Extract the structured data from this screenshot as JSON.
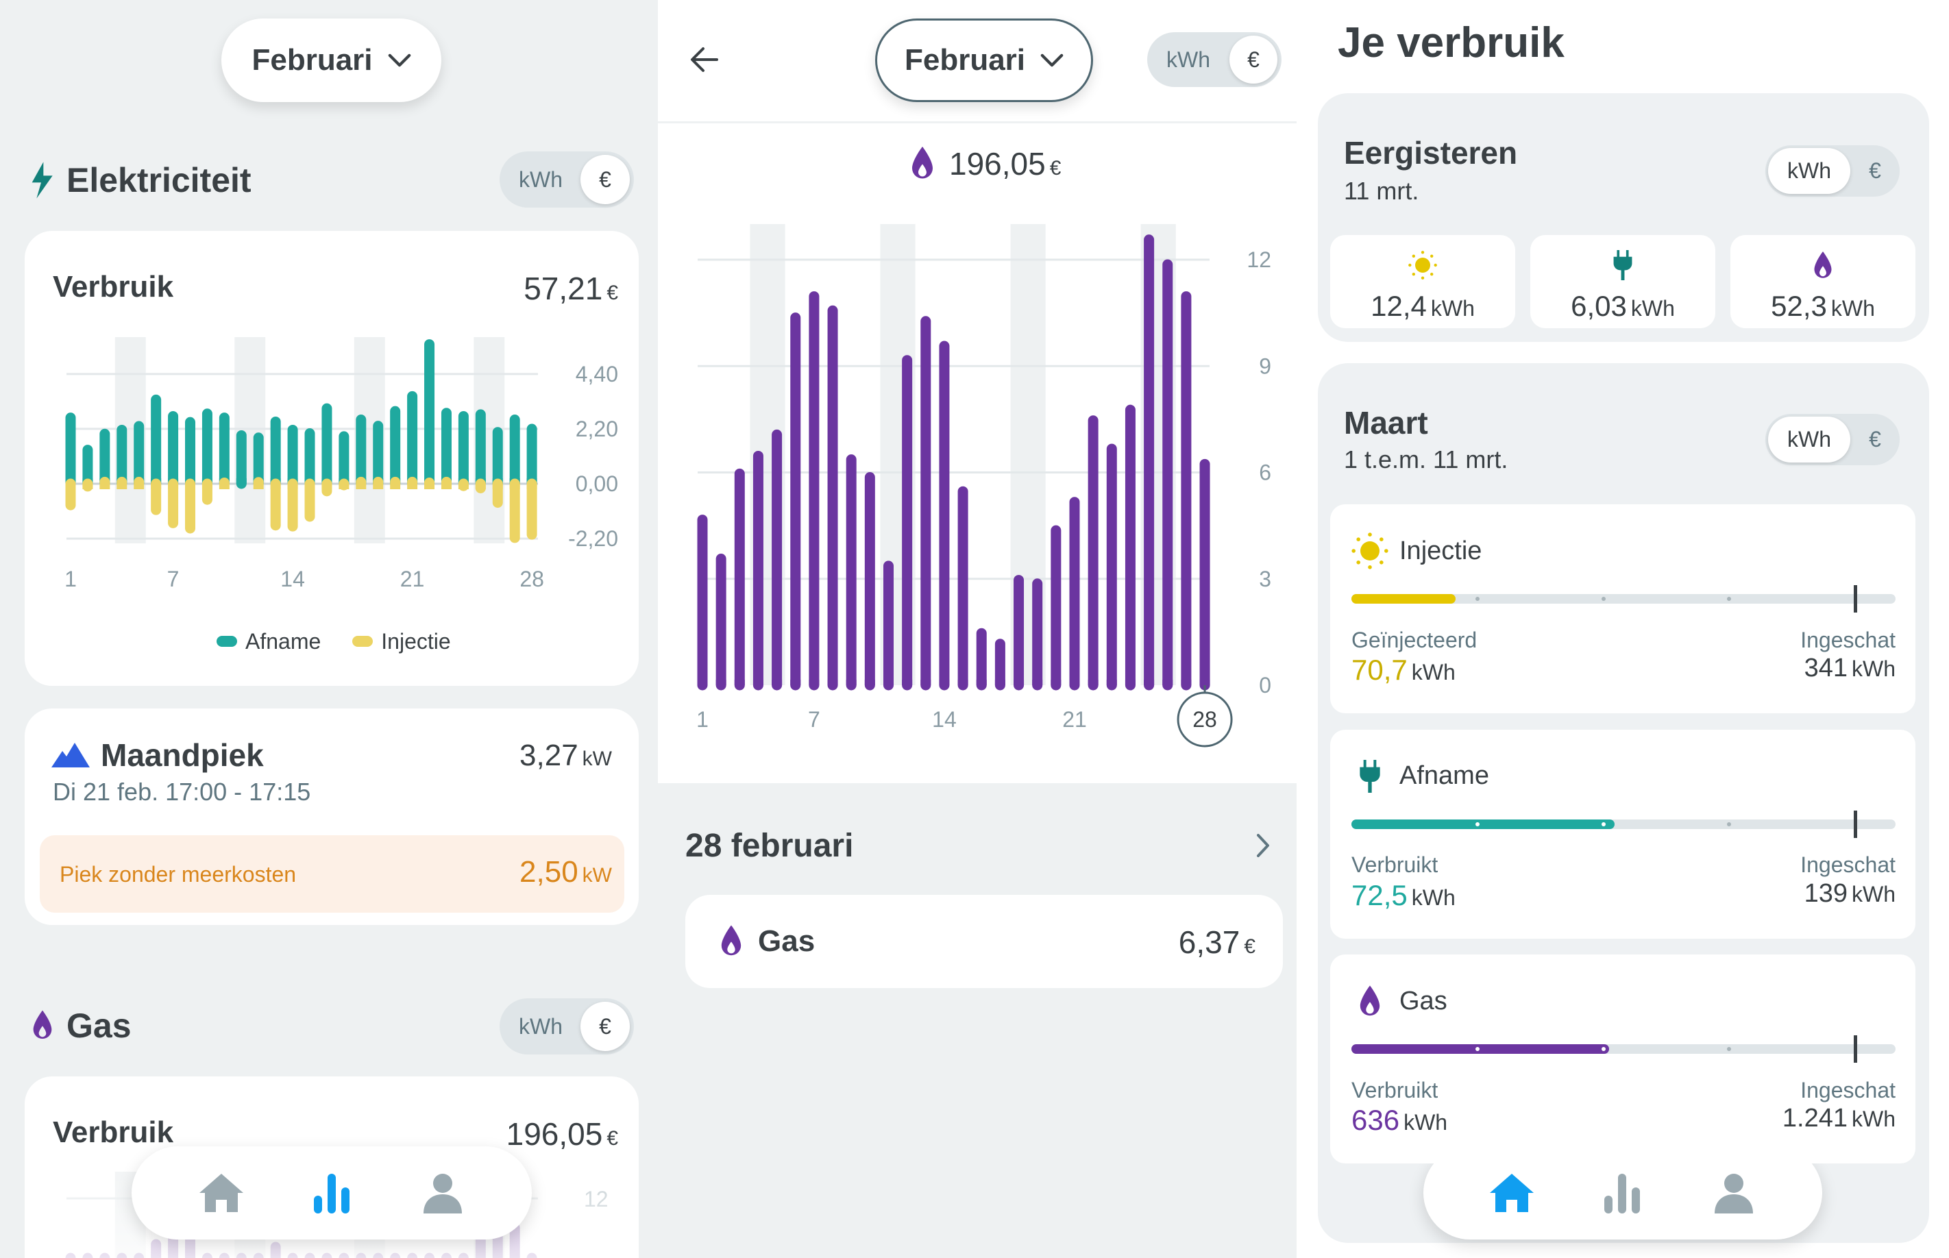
{
  "colors": {
    "afname": "#1fa99f",
    "injectie": "#ecd463",
    "gas": "#6b35a0",
    "peak": "#2f5fe0",
    "orange": "#d9861c",
    "nav_active": "#109ef0",
    "nav_inactive": "#9aa9b0",
    "sun": "#e5c600",
    "plug": "#12807a"
  },
  "left": {
    "month_selector": {
      "label": "Februari",
      "icon": "chevron-down-icon"
    },
    "electricity": {
      "title": "Elektriciteit",
      "icon": "lightning-icon",
      "toggle": {
        "kwh": "kWh",
        "eur": "€",
        "selected": "€"
      },
      "card": {
        "title": "Verbruik",
        "value": "57,21",
        "unit": "€"
      },
      "legend": [
        "Afname",
        "Injectie"
      ]
    },
    "peak": {
      "title": "Maandpiek",
      "icon": "mountain-icon",
      "value": "3,27",
      "unit": "kW",
      "date": "Di 21 feb. 17:00 - 17:15",
      "free_label": "Piek zonder meerkosten",
      "free_value": "2,50",
      "free_unit": "kW"
    },
    "gas": {
      "title": "Gas",
      "icon": "flame-icon",
      "toggle": {
        "kwh": "kWh",
        "eur": "€",
        "selected": "€"
      },
      "card": {
        "title": "Verbruik",
        "value": "196,05",
        "unit": "€"
      },
      "y_tick": "12"
    },
    "nav": {
      "items": [
        "home",
        "stats",
        "profile"
      ],
      "active": "stats"
    }
  },
  "middle": {
    "month_selector": {
      "label": "Februari"
    },
    "toggle": {
      "kwh": "kWh",
      "eur": "€",
      "selected": "€"
    },
    "total": {
      "value": "196,05",
      "unit": "€"
    },
    "day_title": "28 februari",
    "gas_row": {
      "label": "Gas",
      "value": "6,37",
      "unit": "€"
    }
  },
  "right": {
    "title": "Je verbruik",
    "yesterday": {
      "title": "Eergisteren",
      "date": "11 mrt.",
      "toggle": {
        "kwh": "kWh",
        "eur": "€",
        "selected": "kWh"
      },
      "tiles": [
        {
          "icon": "sun-icon",
          "value": "12,4",
          "unit": "kWh"
        },
        {
          "icon": "plug-icon",
          "value": "6,03",
          "unit": "kWh"
        },
        {
          "icon": "flame-icon",
          "value": "52,3",
          "unit": "kWh"
        }
      ]
    },
    "month": {
      "title": "Maart",
      "range": "1 t.e.m. 11 mrt.",
      "toggle": {
        "kwh": "kWh",
        "eur": "€",
        "selected": "kWh"
      },
      "items": [
        {
          "name": "Injectie",
          "icon": "sun-icon",
          "left_label": "Geïnjecteerd",
          "value": "70,7",
          "estimate_label": "Ingeschat",
          "estimate": "341",
          "unit": "kWh",
          "progress": 0.207,
          "color": "#e5c600"
        },
        {
          "name": "Afname",
          "icon": "plug-icon",
          "left_label": "Verbruikt",
          "value": "72,5",
          "estimate_label": "Ingeschat",
          "estimate": "139",
          "unit": "kWh",
          "progress": 0.522,
          "color": "#1fa99f"
        },
        {
          "name": "Gas",
          "icon": "flame-icon",
          "left_label": "Verbruikt",
          "value": "636",
          "estimate_label": "Ingeschat",
          "estimate": "1.241",
          "unit": "kWh",
          "progress": 0.512,
          "color": "#6b35a0"
        }
      ]
    },
    "nav": {
      "items": [
        "home",
        "stats",
        "profile"
      ],
      "active": "home"
    }
  },
  "chart_data": [
    {
      "type": "bar",
      "title": "Verbruik",
      "x": [
        1,
        2,
        3,
        4,
        5,
        6,
        7,
        8,
        9,
        10,
        11,
        12,
        13,
        14,
        15,
        16,
        17,
        18,
        19,
        20,
        21,
        22,
        23,
        24,
        25,
        26,
        27,
        28
      ],
      "x_ticks": [
        "1",
        "7",
        "14",
        "21",
        "28"
      ],
      "y_ticks": [
        "4,40",
        "2,20",
        "0,00",
        "-2,20"
      ],
      "y_tick_values": [
        4.4,
        2.2,
        0,
        -2.2
      ],
      "grid": true,
      "legend": "bottom",
      "highlighted_days": [
        4,
        5,
        11,
        12,
        18,
        19,
        25,
        26
      ],
      "series": [
        {
          "name": "Afname",
          "values": [
            2.84,
            1.55,
            2.19,
            2.35,
            2.5,
            3.56,
            2.9,
            2.66,
            3.0,
            2.84,
            2.13,
            2.04,
            2.68,
            2.35,
            2.21,
            3.21,
            2.09,
            2.76,
            2.51,
            3.1,
            3.7,
            5.78,
            3.03,
            2.9,
            2.97,
            2.26,
            2.76,
            2.39
          ]
        },
        {
          "name": "Injectie",
          "values": [
            -1.05,
            -0.3,
            -0.12,
            -0.12,
            -0.12,
            -1.24,
            -1.77,
            -1.98,
            -0.83,
            -0.15,
            0,
            -0.13,
            -1.86,
            -1.9,
            -1.51,
            -0.49,
            -0.25,
            -0.12,
            -0.12,
            -0.12,
            -0.12,
            -0.15,
            -0.12,
            -0.28,
            -0.37,
            -0.95,
            -2.36,
            -2.23
          ]
        }
      ]
    },
    {
      "type": "bar",
      "title": "",
      "x": [
        1,
        2,
        3,
        4,
        5,
        6,
        7,
        8,
        9,
        10,
        11,
        12,
        13,
        14,
        15,
        16,
        17,
        18,
        19,
        20,
        21,
        22,
        23,
        24,
        25,
        26,
        27,
        28
      ],
      "x_ticks": [
        "1",
        "7",
        "14",
        "21",
        "28"
      ],
      "selected_x": "28",
      "y_ticks": [
        "12",
        "9",
        "6",
        "3",
        "0"
      ],
      "y_tick_values": [
        12,
        9,
        6,
        3,
        0
      ],
      "ylim": [
        0,
        12.7
      ],
      "grid": true,
      "highlighted_days": [
        4,
        5,
        11,
        12,
        18,
        19,
        25,
        26
      ],
      "values": [
        4.8,
        3.7,
        6.1,
        6.6,
        7.2,
        10.5,
        11.1,
        10.7,
        6.5,
        6.0,
        3.5,
        9.3,
        10.4,
        9.7,
        5.6,
        1.6,
        1.3,
        3.1,
        3.0,
        4.5,
        5.3,
        7.6,
        6.8,
        7.9,
        12.7,
        12.0,
        11.1,
        6.37
      ]
    }
  ]
}
